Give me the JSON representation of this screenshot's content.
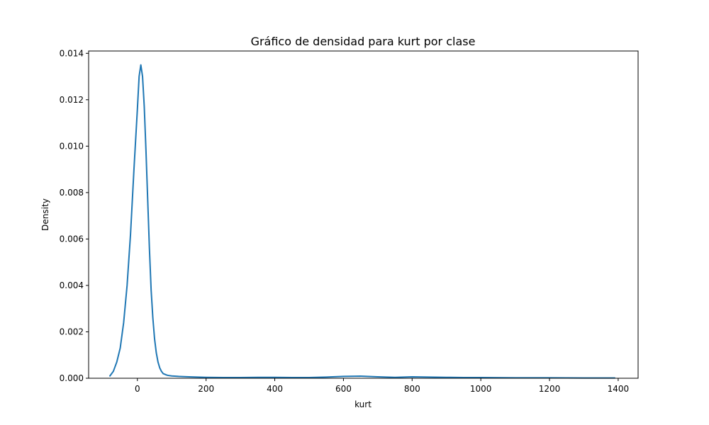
{
  "chart_data": {
    "type": "line",
    "title": "Gráfico de densidad para kurt por clase",
    "xlabel": "kurt",
    "ylabel": "Density",
    "xlim": [
      -142,
      1458
    ],
    "ylim": [
      0,
      0.0141
    ],
    "xticks": [
      0,
      200,
      400,
      600,
      800,
      1000,
      1200,
      1400
    ],
    "xtick_labels": [
      "0",
      "200",
      "400",
      "600",
      "800",
      "1000",
      "1200",
      "1400"
    ],
    "yticks": [
      0,
      0.002,
      0.004,
      0.006,
      0.008,
      0.01,
      0.012,
      0.014
    ],
    "ytick_labels": [
      "0.000",
      "0.002",
      "0.004",
      "0.006",
      "0.008",
      "0.010",
      "0.012",
      "0.014"
    ],
    "grid": false,
    "series": [
      {
        "color": "#1f77b4",
        "x": [
          -80,
          -70,
          -60,
          -50,
          -40,
          -30,
          -20,
          -10,
          0,
          5,
          10,
          15,
          20,
          25,
          30,
          35,
          40,
          45,
          50,
          55,
          60,
          65,
          70,
          75,
          80,
          85,
          90,
          100,
          120,
          150,
          200,
          250,
          300,
          350,
          400,
          450,
          500,
          550,
          600,
          650,
          700,
          750,
          800,
          850,
          900,
          950,
          1000,
          1100,
          1200,
          1300,
          1390
        ],
        "y": [
          0.0001,
          0.0003,
          0.0007,
          0.0013,
          0.0024,
          0.004,
          0.0062,
          0.009,
          0.0116,
          0.013,
          0.0135,
          0.013,
          0.0117,
          0.0098,
          0.0077,
          0.0056,
          0.0038,
          0.0026,
          0.0017,
          0.0011,
          0.0007,
          0.00045,
          0.0003,
          0.0002,
          0.00017,
          0.00014,
          0.00012,
          0.0001,
          8e-05,
          6e-05,
          4e-05,
          3e-05,
          3e-05,
          4e-05,
          4e-05,
          3e-05,
          3e-05,
          5e-05,
          8e-05,
          9e-05,
          6e-05,
          4e-05,
          6e-05,
          5e-05,
          4e-05,
          3e-05,
          3e-05,
          2e-05,
          2e-05,
          1e-05,
          1e-05
        ]
      }
    ]
  }
}
